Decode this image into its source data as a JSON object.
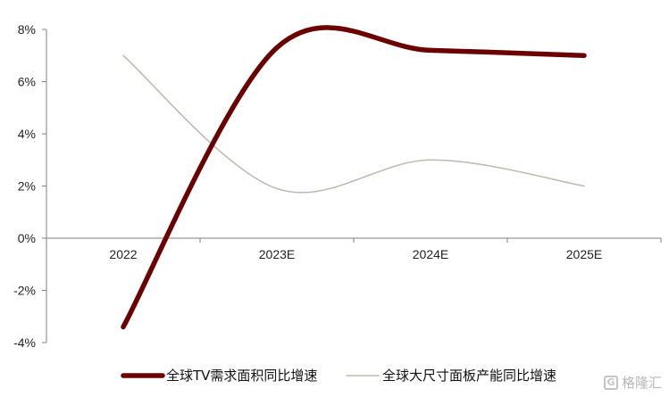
{
  "chart_data": {
    "type": "line",
    "categories": [
      "2022",
      "2023E",
      "2024E",
      "2025E"
    ],
    "ylim": [
      -4,
      8
    ],
    "y_ticks": [
      8,
      6,
      4,
      2,
      0,
      -2,
      -4
    ],
    "y_tick_format": "%",
    "grid": false,
    "legend_position": "bottom",
    "series": [
      {
        "name": "全球TV需求面积同比增速",
        "color": "#6b0000",
        "values": [
          -3.4,
          7.3,
          7.2,
          7.0
        ]
      },
      {
        "name": "全球大尺寸面板产能同比增速",
        "color": "#bcbcb0",
        "values": [
          7.0,
          1.9,
          3.0,
          2.0
        ]
      }
    ]
  },
  "watermark": {
    "icon_text": "G",
    "text": "格隆汇"
  }
}
